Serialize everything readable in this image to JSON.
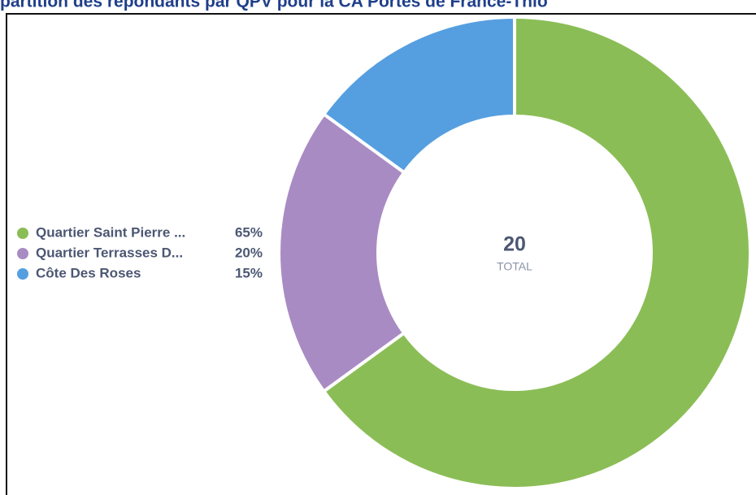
{
  "chart_data": {
    "type": "pie",
    "title": "partition des répondants par QPV pour la CA Portes de France-Thio",
    "categories": [
      "Quartier Saint Pierre ...",
      "Quartier Terrasses D...",
      "Côte Des Roses"
    ],
    "values": [
      65,
      20,
      15
    ],
    "value_labels": [
      "65%",
      "20%",
      "15%"
    ],
    "colors": [
      "#8bbd56",
      "#a98bc4",
      "#559fe0"
    ],
    "total": 20,
    "total_label": "TOTAL"
  }
}
